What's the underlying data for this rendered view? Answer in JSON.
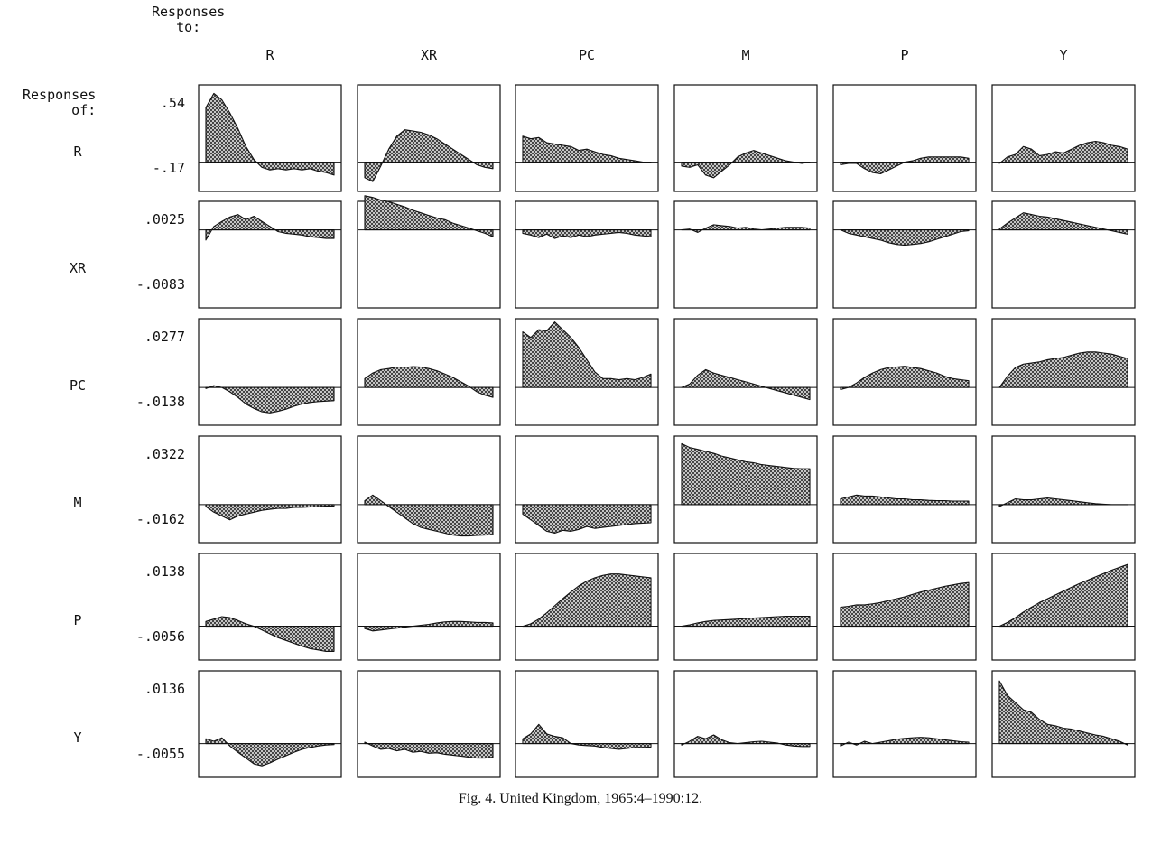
{
  "header": {
    "responses_to": "Responses\n   to:",
    "responses_of": "Responses\n      of:"
  },
  "caption": "Fig. 4. United Kingdom, 1965:4–1990:12.",
  "colors": {
    "ink": "#111111",
    "fill_hatch": "#3a3a3a"
  },
  "chart_data": {
    "type": "area",
    "title": "",
    "grid": false,
    "columns": [
      "R",
      "XR",
      "PC",
      "M",
      "P",
      "Y"
    ],
    "rows": [
      {
        "name": "R",
        "ymax_label": ".54",
        "ymin_label": "-.17",
        "ylim": [
          -0.17,
          0.54
        ]
      },
      {
        "name": "XR",
        "ymax_label": ".0025",
        "ymin_label": "-.0083",
        "ylim": [
          -0.0083,
          0.0025
        ]
      },
      {
        "name": "PC",
        "ymax_label": ".0277",
        "ymin_label": "-.0138",
        "ylim": [
          -0.0138,
          0.0277
        ]
      },
      {
        "name": "M",
        "ymax_label": ".0322",
        "ymin_label": "-.0162",
        "ylim": [
          -0.0162,
          0.0322
        ]
      },
      {
        "name": "P",
        "ymax_label": ".0138",
        "ymin_label": "-.0056",
        "ylim": [
          -0.0056,
          0.0138
        ]
      },
      {
        "name": "Y",
        "ymax_label": ".0136",
        "ymin_label": "-.0055",
        "ylim": [
          -0.0055,
          0.0136
        ]
      }
    ],
    "panels": [
      [
        [
          0.42,
          0.53,
          0.48,
          0.38,
          0.26,
          0.12,
          0.02,
          -0.04,
          -0.06,
          -0.05,
          -0.06,
          -0.05,
          -0.06,
          -0.05,
          -0.07,
          -0.08,
          -0.1
        ],
        [
          -0.12,
          -0.15,
          -0.03,
          0.1,
          0.2,
          0.25,
          0.24,
          0.23,
          0.21,
          0.18,
          0.14,
          0.1,
          0.06,
          0.02,
          -0.02,
          -0.04,
          -0.05
        ],
        [
          0.2,
          0.18,
          0.19,
          0.15,
          0.14,
          0.13,
          0.12,
          0.09,
          0.1,
          0.08,
          0.06,
          0.05,
          0.03,
          0.02,
          0.01,
          0.0,
          0.0
        ],
        [
          -0.03,
          -0.04,
          -0.02,
          -0.1,
          -0.12,
          -0.07,
          -0.02,
          0.04,
          0.07,
          0.09,
          0.07,
          0.05,
          0.03,
          0.01,
          0.0,
          -0.01,
          0.0
        ],
        [
          -0.02,
          -0.01,
          -0.01,
          -0.05,
          -0.08,
          -0.09,
          -0.06,
          -0.03,
          0.0,
          0.01,
          0.03,
          0.04,
          0.04,
          0.04,
          0.04,
          0.04,
          0.03
        ],
        [
          -0.01,
          0.04,
          0.06,
          0.12,
          0.1,
          0.05,
          0.06,
          0.08,
          0.07,
          0.1,
          0.13,
          0.15,
          0.16,
          0.15,
          0.13,
          0.12,
          0.1
        ]
      ],
      [
        [
          -0.0012,
          0.0004,
          0.001,
          0.0015,
          0.0018,
          0.0012,
          0.0016,
          0.001,
          0.0004,
          -0.0002,
          -0.0004,
          -0.0005,
          -0.0006,
          -0.0008,
          -0.0009,
          -0.001,
          -0.001
        ],
        [
          0.004,
          0.0038,
          0.0035,
          0.0033,
          0.003,
          0.0027,
          0.0023,
          0.002,
          0.0017,
          0.0014,
          0.0012,
          0.0008,
          0.0005,
          0.0002,
          -0.0001,
          -0.0004,
          -0.0008
        ],
        [
          -0.0004,
          -0.0006,
          -0.0009,
          -0.0005,
          -0.001,
          -0.0007,
          -0.0009,
          -0.0006,
          -0.0008,
          -0.0006,
          -0.0005,
          -0.0004,
          -0.0003,
          -0.0004,
          -0.0006,
          -0.0007,
          -0.0008
        ],
        [
          0.0,
          0.0001,
          -0.0003,
          0.0002,
          0.0006,
          0.0005,
          0.0004,
          0.0002,
          0.0003,
          0.0001,
          0.0,
          0.0001,
          0.0002,
          0.0003,
          0.0003,
          0.0003,
          0.0002
        ],
        [
          0.0,
          -0.0004,
          -0.0006,
          -0.0008,
          -0.001,
          -0.0012,
          -0.0015,
          -0.0017,
          -0.0018,
          -0.0017,
          -0.0016,
          -0.0014,
          -0.0011,
          -0.0008,
          -0.0005,
          -0.0002,
          -0.0001
        ],
        [
          0.0001,
          0.0008,
          0.0014,
          0.002,
          0.0018,
          0.0016,
          0.0015,
          0.0013,
          0.0011,
          0.0009,
          0.0007,
          0.0005,
          0.0003,
          0.0001,
          -0.0001,
          -0.0003,
          -0.0005
        ]
      ],
      [
        [
          -0.0005,
          0.0008,
          0.0,
          -0.002,
          -0.0045,
          -0.0075,
          -0.0095,
          -0.011,
          -0.0115,
          -0.0108,
          -0.0098,
          -0.0085,
          -0.0075,
          -0.0068,
          -0.0064,
          -0.0062,
          -0.006
        ],
        [
          0.004,
          0.0065,
          0.008,
          0.0085,
          0.0092,
          0.009,
          0.0094,
          0.0092,
          0.0085,
          0.0075,
          0.006,
          0.0045,
          0.0025,
          0.0005,
          -0.002,
          -0.0035,
          -0.0045
        ],
        [
          0.025,
          0.0225,
          0.026,
          0.0255,
          0.0295,
          0.026,
          0.0225,
          0.018,
          0.0125,
          0.007,
          0.004,
          0.004,
          0.0035,
          0.004,
          0.0035,
          0.0045,
          0.006
        ],
        [
          0.0,
          0.0015,
          0.0055,
          0.008,
          0.0065,
          0.0055,
          0.0045,
          0.0035,
          0.0025,
          0.0015,
          0.0005,
          -0.0005,
          -0.0015,
          -0.0025,
          -0.0035,
          -0.0045,
          -0.0055
        ],
        [
          -0.001,
          0.0,
          0.002,
          0.0045,
          0.0065,
          0.008,
          0.009,
          0.0092,
          0.0095,
          0.009,
          0.0085,
          0.0075,
          0.0065,
          0.005,
          0.004,
          0.0035,
          0.003
        ],
        [
          0.0,
          0.005,
          0.009,
          0.0105,
          0.011,
          0.0115,
          0.0125,
          0.013,
          0.0135,
          0.0145,
          0.0155,
          0.016,
          0.016,
          0.0155,
          0.015,
          0.014,
          0.013
        ]
      ],
      [
        [
          -0.001,
          -0.004,
          -0.006,
          -0.008,
          -0.006,
          -0.005,
          -0.004,
          -0.003,
          -0.0025,
          -0.002,
          -0.002,
          -0.0015,
          -0.0015,
          -0.0012,
          -0.001,
          -0.0008,
          -0.0008
        ],
        [
          0.002,
          0.005,
          0.002,
          -0.001,
          -0.004,
          -0.007,
          -0.01,
          -0.012,
          -0.013,
          -0.014,
          -0.015,
          -0.016,
          -0.0165,
          -0.0165,
          -0.0162,
          -0.016,
          -0.0158
        ],
        [
          -0.005,
          -0.008,
          -0.011,
          -0.014,
          -0.015,
          -0.0135,
          -0.014,
          -0.013,
          -0.0115,
          -0.0125,
          -0.012,
          -0.0115,
          -0.011,
          -0.0105,
          -0.01,
          -0.0098,
          -0.0095
        ],
        [
          0.032,
          0.03,
          0.029,
          0.028,
          0.027,
          0.0255,
          0.0245,
          0.0235,
          0.0225,
          0.022,
          0.021,
          0.0205,
          0.02,
          0.0195,
          0.019,
          0.0188,
          0.0188
        ],
        [
          0.003,
          0.004,
          0.005,
          0.0045,
          0.0045,
          0.004,
          0.0035,
          0.003,
          0.003,
          0.0025,
          0.0025,
          0.0022,
          0.002,
          0.002,
          0.0018,
          0.0018,
          0.0018
        ],
        [
          -0.001,
          0.001,
          0.003,
          0.0025,
          0.0025,
          0.003,
          0.0035,
          0.003,
          0.0025,
          0.002,
          0.0015,
          0.001,
          0.0005,
          0.0002,
          0.0,
          0.0,
          0.0
        ]
      ],
      [
        [
          0.001,
          0.0015,
          0.002,
          0.0018,
          0.0012,
          0.0005,
          0.0,
          -0.0008,
          -0.0016,
          -0.0024,
          -0.003,
          -0.0036,
          -0.0042,
          -0.0047,
          -0.005,
          -0.0053,
          -0.0053
        ],
        [
          -0.0005,
          -0.001,
          -0.0008,
          -0.0006,
          -0.0004,
          -0.0002,
          0.0,
          0.0002,
          0.0004,
          0.0007,
          0.0009,
          0.001,
          0.001,
          0.0009,
          0.0008,
          0.0008,
          0.0007
        ],
        [
          0.0,
          0.0005,
          0.0015,
          0.0028,
          0.0043,
          0.0058,
          0.0072,
          0.0085,
          0.0095,
          0.0102,
          0.0107,
          0.011,
          0.011,
          0.0108,
          0.0106,
          0.0104,
          0.0102
        ],
        [
          0.0,
          0.0003,
          0.0007,
          0.001,
          0.0012,
          0.0013,
          0.0014,
          0.0015,
          0.0016,
          0.0017,
          0.0018,
          0.0019,
          0.002,
          0.0021,
          0.0021,
          0.0021,
          0.0021
        ],
        [
          0.004,
          0.0042,
          0.0045,
          0.0045,
          0.0047,
          0.005,
          0.0054,
          0.0058,
          0.0062,
          0.0067,
          0.0072,
          0.0076,
          0.008,
          0.0084,
          0.0087,
          0.009,
          0.0092
        ],
        [
          0.0,
          0.0008,
          0.0018,
          0.003,
          0.004,
          0.005,
          0.0058,
          0.0066,
          0.0074,
          0.0082,
          0.009,
          0.0097,
          0.0104,
          0.0111,
          0.0118,
          0.0124,
          0.013
        ]
      ],
      [
        [
          0.001,
          0.0005,
          0.0012,
          -0.0005,
          -0.0018,
          -0.003,
          -0.0042,
          -0.0046,
          -0.004,
          -0.0032,
          -0.0025,
          -0.0018,
          -0.0012,
          -0.0008,
          -0.0005,
          -0.0003,
          -0.0002
        ],
        [
          0.0003,
          -0.0005,
          -0.0012,
          -0.001,
          -0.0015,
          -0.0012,
          -0.0018,
          -0.0016,
          -0.002,
          -0.0019,
          -0.0022,
          -0.0024,
          -0.0026,
          -0.0028,
          -0.003,
          -0.003,
          -0.0028
        ],
        [
          0.001,
          0.002,
          0.004,
          0.002,
          0.0015,
          0.0012,
          0.0,
          -0.0003,
          -0.0004,
          -0.0005,
          -0.0008,
          -0.001,
          -0.0012,
          -0.001,
          -0.0008,
          -0.0008,
          -0.0007
        ],
        [
          -0.0003,
          0.0005,
          0.0015,
          0.001,
          0.0018,
          0.0008,
          0.0002,
          0.0,
          0.0002,
          0.0004,
          0.0005,
          0.0003,
          0.0001,
          -0.0003,
          -0.0005,
          -0.0006,
          -0.0006
        ],
        [
          -0.0005,
          0.0003,
          -0.0003,
          0.0005,
          0.0,
          0.0003,
          0.0006,
          0.0009,
          0.0011,
          0.0012,
          0.0013,
          0.0012,
          0.001,
          0.0008,
          0.0006,
          0.0004,
          0.0003
        ],
        [
          0.013,
          0.01,
          0.0085,
          0.007,
          0.0065,
          0.005,
          0.004,
          0.0037,
          0.0032,
          0.003,
          0.0026,
          0.0022,
          0.0018,
          0.0015,
          0.001,
          0.0005,
          -0.0003
        ]
      ]
    ]
  }
}
